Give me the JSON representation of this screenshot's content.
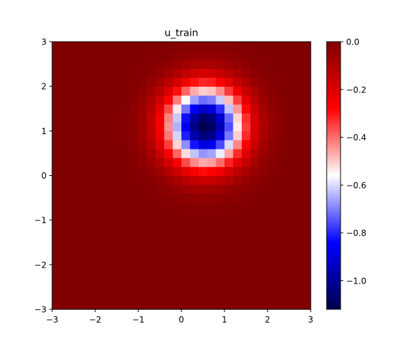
{
  "chart_data": {
    "type": "heatmap",
    "title": "u_train",
    "xlabel": "",
    "ylabel": "",
    "xlim": [
      -3,
      3
    ],
    "ylim": [
      -3,
      3
    ],
    "x_ticks": [
      "−3",
      "−2",
      "−1",
      "0",
      "1",
      "2",
      "3"
    ],
    "y_ticks": [
      "−3",
      "−2",
      "−1",
      "0",
      "1",
      "2",
      "3"
    ],
    "grid": {
      "nx": 30,
      "ny": 30
    },
    "field": {
      "form": "gaussian",
      "center": [
        0.55,
        1.12
      ],
      "sigma": 0.62,
      "min_value": -1.12,
      "max_value": 0.0
    },
    "colormap": "seismic",
    "colorbar": {
      "vmin": -1.12,
      "vmax": 0.0,
      "ticks": [
        0.0,
        -0.2,
        -0.4,
        -0.6,
        -0.8,
        -1.0
      ],
      "tick_labels": [
        "0.0",
        "−0.2",
        "−0.4",
        "−0.6",
        "−0.8",
        "−1.0"
      ]
    }
  }
}
